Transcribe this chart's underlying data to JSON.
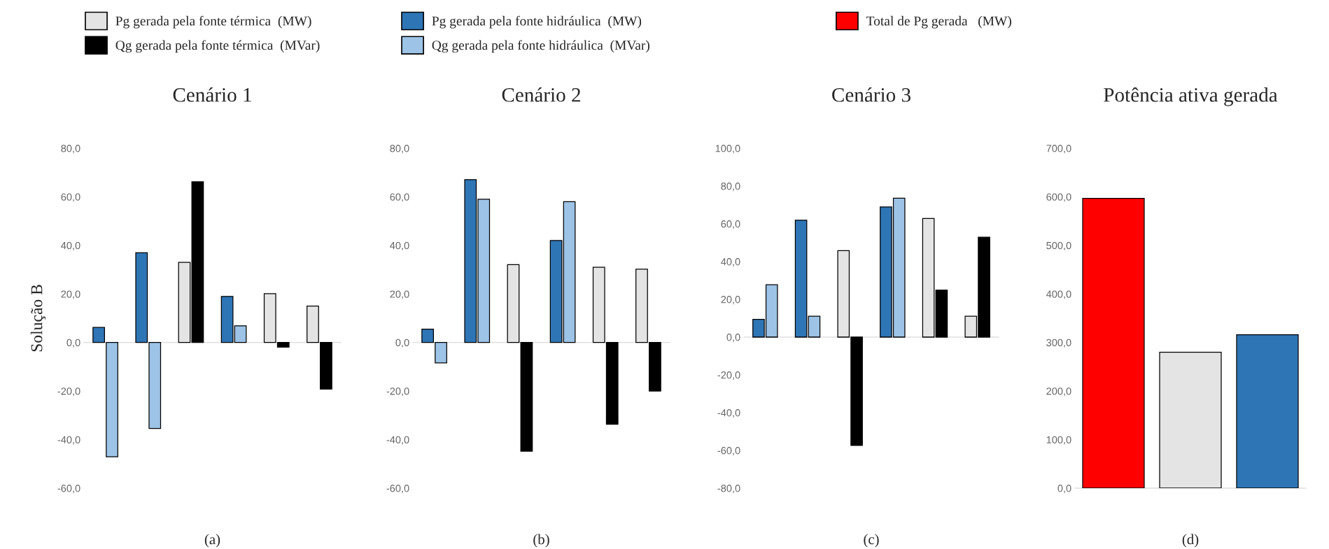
{
  "chart_data": [
    {
      "type": "bar",
      "title": "Cenário 1",
      "xlabel": "(a)",
      "ylabel": "Solução B",
      "categories": [
        null,
        null,
        null,
        null,
        null,
        null
      ],
      "legend": "top",
      "series": [
        {
          "name": "Pg gerada pela fonte térmica  (MW)",
          "color": "#e4e4e4",
          "values": [
            null,
            null,
            33.0,
            null,
            20.1,
            15.0
          ]
        },
        {
          "name": "Qg gerada pela fonte térmica  (MVar)",
          "color": "#000000",
          "values": [
            null,
            null,
            66.2,
            null,
            -1.9,
            -19.2
          ]
        },
        {
          "name": "Pg gerada pela fonte hidráulica  (MW)",
          "color": "#2e75b6",
          "values": [
            6.2,
            37.0,
            null,
            19.0,
            null,
            null
          ]
        },
        {
          "name": "Qg gerada pela fonte hidráulica  (MVar)",
          "color": "#9dc3e6",
          "values": [
            -47.1,
            -35.4,
            null,
            6.9,
            null,
            null
          ]
        }
      ],
      "ylim": [
        -60,
        80
      ],
      "yticks": [
        {
          "value": -60,
          "label": "-60,0"
        },
        {
          "value": -40,
          "label": "-40,0"
        },
        {
          "value": -20,
          "label": "-20,0"
        },
        {
          "value": 0,
          "label": "0,0"
        },
        {
          "value": 20,
          "label": "20,0"
        },
        {
          "value": 40,
          "label": "40,0"
        },
        {
          "value": 60,
          "label": "60,0"
        },
        {
          "value": 80,
          "label": "80,0"
        }
      ]
    },
    {
      "type": "bar",
      "title": "Cenário 2",
      "xlabel": "(b)",
      "categories": [
        null,
        null,
        null,
        null,
        null,
        null
      ],
      "series": [
        {
          "color": "#e4e4e4",
          "values": [
            null,
            null,
            32.1,
            null,
            31.0,
            30.2
          ]
        },
        {
          "color": "#000000",
          "values": [
            null,
            null,
            -44.8,
            null,
            -33.7,
            -20.0
          ]
        },
        {
          "color": "#2e75b6",
          "values": [
            5.5,
            67.1,
            null,
            42.0,
            null,
            null
          ]
        },
        {
          "color": "#9dc3e6",
          "values": [
            -8.4,
            59.0,
            null,
            58.0,
            null,
            null
          ]
        }
      ],
      "ylim": [
        -60,
        80
      ],
      "yticks": [
        {
          "value": -60,
          "label": "-60,0"
        },
        {
          "value": -40,
          "label": "-40,0"
        },
        {
          "value": -20,
          "label": "-20,0"
        },
        {
          "value": 0,
          "label": "0,0"
        },
        {
          "value": 20,
          "label": "20,0"
        },
        {
          "value": 40,
          "label": "40,0"
        },
        {
          "value": 60,
          "label": "60,0"
        },
        {
          "value": 80,
          "label": "80,0"
        }
      ]
    },
    {
      "type": "bar",
      "title": "Cenário 3",
      "xlabel": "(c)",
      "categories": [
        null,
        null,
        null,
        null,
        null,
        null
      ],
      "series": [
        {
          "color": "#e4e4e4",
          "values": [
            null,
            null,
            45.8,
            null,
            62.8,
            11.1
          ]
        },
        {
          "color": "#000000",
          "values": [
            null,
            null,
            -57.4,
            null,
            24.9,
            52.9
          ]
        },
        {
          "color": "#2e75b6",
          "values": [
            9.4,
            61.9,
            null,
            68.9,
            null,
            null
          ]
        },
        {
          "color": "#9dc3e6",
          "values": [
            27.7,
            11.1,
            null,
            73.6,
            null,
            null
          ]
        }
      ],
      "ylim": [
        -80,
        100
      ],
      "yticks": [
        {
          "value": -80,
          "label": "-80,0"
        },
        {
          "value": -60,
          "label": "-60,0"
        },
        {
          "value": -40,
          "label": "-40,0"
        },
        {
          "value": -20,
          "label": "-20,0"
        },
        {
          "value": 0,
          "label": "0,0"
        },
        {
          "value": 20,
          "label": "20,0"
        },
        {
          "value": 40,
          "label": "40,0"
        },
        {
          "value": 60,
          "label": "60,0"
        },
        {
          "value": 80,
          "label": "80,0"
        },
        {
          "value": 100,
          "label": "100,0"
        }
      ]
    },
    {
      "type": "bar",
      "title": "Potência ativa gerada",
      "xlabel": "(d)",
      "categories": [
        null,
        null,
        null
      ],
      "legend": "top",
      "series": [
        {
          "name": "Total de Pg gerada   (MW)",
          "color": "#ff0000",
          "values": [
            597,
            null,
            null
          ]
        },
        {
          "color": "#e4e4e4",
          "values": [
            null,
            280,
            null
          ]
        },
        {
          "color": "#2e75b6",
          "values": [
            null,
            null,
            316
          ]
        }
      ],
      "ylim": [
        0,
        700
      ],
      "yticks": [
        {
          "value": 0,
          "label": "0,0"
        },
        {
          "value": 100,
          "label": "100,0"
        },
        {
          "value": 200,
          "label": "200,0"
        },
        {
          "value": 300,
          "label": "300,0"
        },
        {
          "value": 400,
          "label": "400,0"
        },
        {
          "value": 500,
          "label": "500,0"
        },
        {
          "value": 600,
          "label": "600,0"
        },
        {
          "value": 700,
          "label": "700,0"
        }
      ]
    }
  ]
}
